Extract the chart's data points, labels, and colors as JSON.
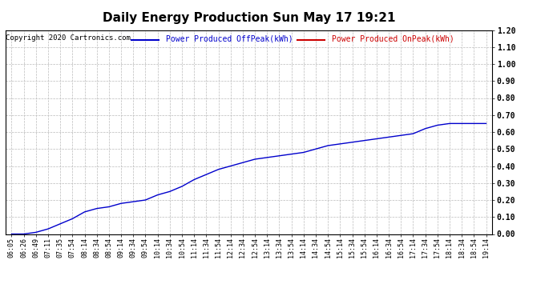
{
  "title": "Daily Energy Production Sun May 17 19:21",
  "copyright": "Copyright 2020 Cartronics.com",
  "legend_offpeak": "Power Produced OffPeak(kWh)",
  "legend_onpeak": "Power Produced OnPeak(kWh)",
  "background_color": "#ffffff",
  "plot_bg_color": "#ffffff",
  "grid_color": "#bbbbbb",
  "line_color_offpeak": "#0000cc",
  "line_color_onpeak": "#cc0000",
  "title_color": "#000000",
  "copyright_color": "#000000",
  "ylim": [
    0.0,
    1.2
  ],
  "yticks": [
    0.0,
    0.1,
    0.2,
    0.3,
    0.4,
    0.5,
    0.6,
    0.7,
    0.8,
    0.9,
    1.0,
    1.1,
    1.2
  ],
  "x_labels": [
    "06:05",
    "06:26",
    "06:49",
    "07:11",
    "07:35",
    "07:54",
    "08:14",
    "08:34",
    "08:54",
    "09:14",
    "09:34",
    "09:54",
    "10:14",
    "10:34",
    "10:54",
    "11:14",
    "11:34",
    "11:54",
    "12:14",
    "12:34",
    "12:54",
    "13:14",
    "13:34",
    "13:54",
    "14:14",
    "14:34",
    "14:54",
    "15:14",
    "15:34",
    "15:54",
    "16:14",
    "16:34",
    "16:54",
    "17:14",
    "17:34",
    "17:54",
    "18:14",
    "18:34",
    "18:54",
    "19:14"
  ],
  "offpeak_values": [
    0.0,
    0.0,
    0.01,
    0.03,
    0.06,
    0.09,
    0.13,
    0.15,
    0.16,
    0.18,
    0.19,
    0.2,
    0.23,
    0.25,
    0.28,
    0.32,
    0.35,
    0.38,
    0.4,
    0.42,
    0.44,
    0.45,
    0.46,
    0.47,
    0.48,
    0.5,
    0.52,
    0.53,
    0.54,
    0.55,
    0.56,
    0.57,
    0.58,
    0.59,
    0.62,
    0.64,
    0.65,
    0.65,
    0.65,
    0.65
  ],
  "title_fontsize": 11,
  "copyright_fontsize": 6.5,
  "legend_fontsize": 7,
  "tick_fontsize": 6,
  "ytick_fontsize": 7
}
